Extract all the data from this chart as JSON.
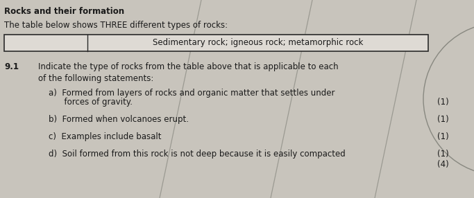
{
  "title": "Rocks and their formation",
  "subtitle": "The table below shows THREE different types of rocks:",
  "table_content": "Sedimentary rock; igneous rock; metamorphic rock",
  "question_number": "9.1",
  "question_text": "Indicate the type of rocks from the table above that is applicable to each\nof the following statements:",
  "item_a": "a)  Formed from layers of rocks and organic matter that settles under",
  "item_a2": "      forces of gravity.",
  "item_b": "b)  Formed when volcanoes erupt.",
  "item_c": "c)  Examples include basalt",
  "item_d": "d)  Soil formed from this rock is not deep because it is easily compacted",
  "marks": [
    "(1)",
    "(1)",
    "(1)",
    "(1)",
    "(4)"
  ],
  "bg_color": "#c8c4bc",
  "table_bg": "#dedad4",
  "text_color": "#1a1a1a",
  "border_color": "#2a2a2a",
  "diag_color": "#888880",
  "arc_color": "#888880"
}
